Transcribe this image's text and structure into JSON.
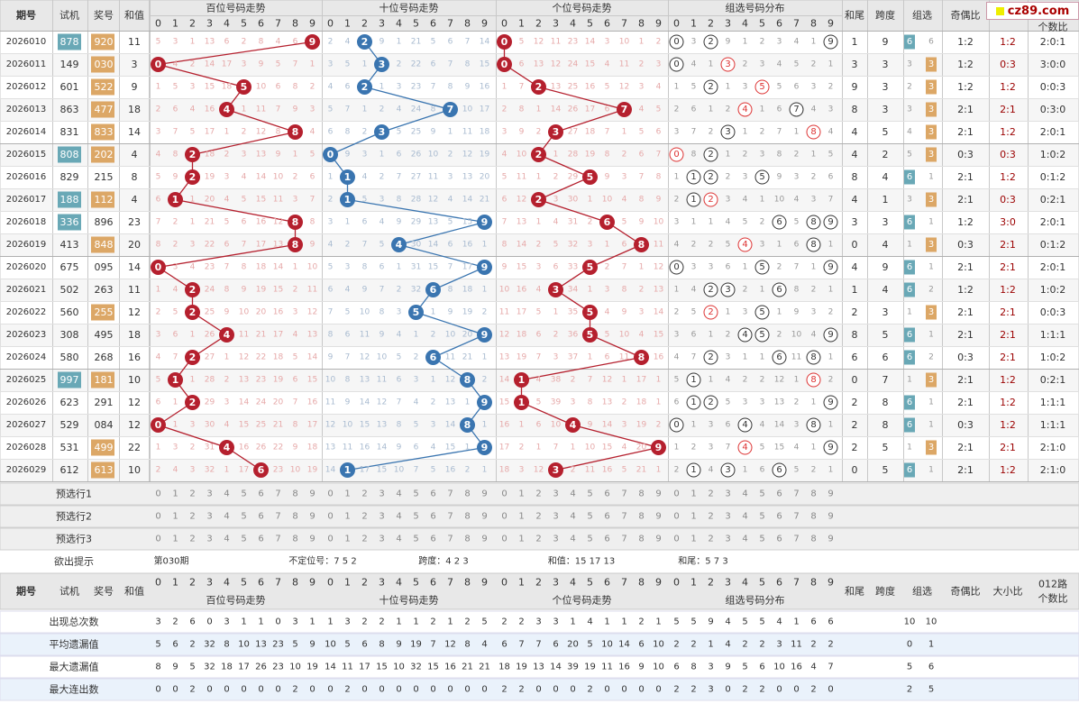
{
  "header": {
    "period": "期号",
    "trial": "试机",
    "award": "奖号",
    "sum": "和值",
    "sections": [
      "百位号码走势",
      "十位号码走势",
      "个位号码走势",
      "组选号码分布"
    ],
    "tail": "和尾",
    "span": "跨度",
    "group": "组选",
    "odd_even": "奇偶比",
    "big_small": "大小比",
    "route012": "012路",
    "route012b": "个数比",
    "digits": [
      "0",
      "1",
      "2",
      "3",
      "4",
      "5",
      "6",
      "7",
      "8",
      "9"
    ]
  },
  "site": {
    "logo_text": "cz89.com"
  },
  "rows": [
    {
      "p": "2026010",
      "t": "878",
      "tc": "6",
      "a": "920",
      "ac": "6",
      "s": "11",
      "hb": [
        5,
        3,
        1,
        13,
        6,
        2,
        8,
        4,
        6,
        9
      ],
      "sb": [
        2,
        4,
        2,
        9,
        1,
        21,
        5,
        6,
        7,
        14
      ],
      "gb": [
        0,
        5,
        12,
        11,
        23,
        14,
        3,
        10,
        1,
        2
      ],
      "zb": [
        0,
        3,
        2,
        9,
        1,
        2,
        3,
        4,
        1,
        9
      ],
      "tail": "1",
      "span": "9",
      "gz": "6",
      "gv": "6",
      "oe": "1:2",
      "bs": "1:2",
      "r": "2:0:1"
    },
    {
      "p": "2026011",
      "t": "149",
      "tc": "n",
      "a": "030",
      "ac": "3",
      "s": "3",
      "hb": [
        0,
        4,
        2,
        14,
        17,
        3,
        9,
        5,
        7,
        1
      ],
      "sb": [
        3,
        5,
        1,
        3,
        2,
        22,
        6,
        7,
        8,
        15
      ],
      "gb": [
        0,
        6,
        13,
        12,
        24,
        15,
        4,
        11,
        2,
        3
      ],
      "zb": [
        0,
        4,
        1,
        3,
        2,
        3,
        4,
        5,
        2,
        1
      ],
      "tail": "3",
      "span": "3",
      "gz": "3",
      "gv": "3",
      "oe": "1:2",
      "bs": "0:3",
      "r": "3:0:0"
    },
    {
      "p": "2026012",
      "t": "601",
      "tc": "n",
      "a": "522",
      "ac": "6",
      "s": "9",
      "hb": [
        1,
        5,
        3,
        15,
        18,
        5,
        10,
        6,
        8,
        2
      ],
      "sb": [
        4,
        6,
        2,
        1,
        3,
        23,
        7,
        8,
        9,
        16
      ],
      "gb": [
        1,
        7,
        2,
        13,
        25,
        16,
        5,
        12,
        3,
        4
      ],
      "zb": [
        1,
        5,
        2,
        1,
        3,
        5,
        5,
        6,
        3,
        2
      ],
      "tail": "9",
      "span": "3",
      "gz": "3",
      "gv": "2",
      "oe": "1:2",
      "bs": "1:2",
      "r": "0:0:3"
    },
    {
      "p": "2026013",
      "t": "863",
      "tc": "n",
      "a": "477",
      "ac": "6",
      "s": "18",
      "hb": [
        2,
        6,
        4,
        16,
        4,
        1,
        11,
        7,
        9,
        3
      ],
      "sb": [
        5,
        7,
        1,
        2,
        4,
        24,
        8,
        7,
        10,
        17
      ],
      "gb": [
        2,
        8,
        1,
        14,
        26,
        17,
        6,
        7,
        4,
        5
      ],
      "zb": [
        2,
        6,
        1,
        2,
        4,
        1,
        6,
        7,
        4,
        3
      ],
      "tail": "8",
      "span": "3",
      "gz": "3",
      "gv": "3",
      "oe": "2:1",
      "bs": "2:1",
      "r": "0:3:0"
    },
    {
      "p": "2026014",
      "t": "831",
      "tc": "n",
      "a": "833",
      "ac": "6",
      "s": "14",
      "hb": [
        3,
        7,
        5,
        17,
        1,
        2,
        12,
        8,
        8,
        4
      ],
      "sb": [
        6,
        8,
        2,
        3,
        5,
        25,
        9,
        1,
        11,
        18
      ],
      "gb": [
        3,
        9,
        2,
        3,
        27,
        18,
        7,
        1,
        5,
        6
      ],
      "zb": [
        3,
        7,
        2,
        3,
        1,
        2,
        7,
        1,
        8,
        4
      ],
      "tail": "4",
      "span": "5",
      "gz": "3",
      "gv": "4",
      "oe": "2:1",
      "bs": "1:2",
      "r": "2:0:1"
    },
    {
      "p": "2026015",
      "t": "808",
      "tc": "3",
      "a": "202",
      "ac": "6",
      "s": "4",
      "hb": [
        4,
        8,
        2,
        18,
        2,
        3,
        13,
        9,
        1,
        5
      ],
      "sb": [
        0,
        9,
        3,
        1,
        6,
        26,
        10,
        2,
        12,
        19
      ],
      "gb": [
        4,
        10,
        2,
        1,
        28,
        19,
        8,
        2,
        6,
        7
      ],
      "zb": [
        0,
        8,
        2,
        1,
        2,
        3,
        8,
        2,
        1,
        5
      ],
      "tail": "4",
      "span": "2",
      "gz": "3",
      "gv": "5",
      "oe": "0:3",
      "bs": "0:3",
      "r": "1:0:2"
    },
    {
      "p": "2026016",
      "t": "829",
      "tc": "n",
      "a": "215",
      "ac": "n",
      "s": "8",
      "hb": [
        5,
        9,
        2,
        19,
        3,
        4,
        14,
        10,
        2,
        6
      ],
      "sb": [
        1,
        1,
        4,
        2,
        7,
        27,
        11,
        3,
        13,
        20
      ],
      "gb": [
        5,
        11,
        1,
        2,
        29,
        5,
        9,
        3,
        7,
        8
      ],
      "zb": [
        1,
        1,
        2,
        2,
        3,
        5,
        9,
        3,
        2,
        6
      ],
      "tail": "8",
      "span": "4",
      "gz": "6",
      "gv": "1",
      "oe": "2:1",
      "bs": "1:2",
      "r": "0:1:2"
    },
    {
      "p": "2026017",
      "t": "188",
      "tc": "3",
      "a": "112",
      "ac": "6",
      "s": "4",
      "hb": [
        6,
        1,
        1,
        20,
        4,
        5,
        15,
        11,
        3,
        7
      ],
      "sb": [
        2,
        1,
        5,
        3,
        8,
        28,
        12,
        4,
        14,
        21
      ],
      "gb": [
        6,
        12,
        2,
        3,
        30,
        1,
        10,
        4,
        8,
        9
      ],
      "zb": [
        2,
        1,
        2,
        3,
        4,
        1,
        10,
        4,
        3,
        7
      ],
      "tail": "4",
      "span": "1",
      "gz": "3",
      "gv": "3",
      "oe": "2:1",
      "bs": "0:3",
      "r": "0:2:1"
    },
    {
      "p": "2026018",
      "t": "336",
      "tc": "3",
      "a": "896",
      "ac": "n",
      "s": "23",
      "hb": [
        7,
        2,
        1,
        21,
        5,
        6,
        16,
        12,
        8,
        8
      ],
      "sb": [
        3,
        1,
        6,
        4,
        9,
        29,
        13,
        5,
        15,
        9
      ],
      "gb": [
        7,
        13,
        1,
        4,
        31,
        2,
        6,
        5,
        9,
        10
      ],
      "zb": [
        3,
        1,
        1,
        4,
        5,
        2,
        6,
        5,
        8,
        9
      ],
      "tail": "3",
      "span": "3",
      "gz": "6",
      "gv": "1",
      "oe": "1:2",
      "bs": "3:0",
      "r": "2:0:1"
    },
    {
      "p": "2026019",
      "t": "413",
      "tc": "n",
      "a": "848",
      "ac": "6",
      "s": "20",
      "hb": [
        8,
        2,
        3,
        22,
        6,
        7,
        17,
        13,
        8,
        9
      ],
      "sb": [
        4,
        2,
        7,
        5,
        4,
        30,
        14,
        6,
        16,
        1
      ],
      "gb": [
        8,
        14,
        2,
        5,
        32,
        3,
        1,
        6,
        8,
        11
      ],
      "zb": [
        4,
        2,
        2,
        5,
        4,
        3,
        1,
        6,
        8,
        1
      ],
      "tail": "0",
      "span": "4",
      "gz": "3",
      "gv": "1",
      "oe": "0:3",
      "bs": "2:1",
      "r": "0:1:2"
    },
    {
      "p": "2026020",
      "t": "675",
      "tc": "n",
      "a": "095",
      "ac": "n",
      "s": "14",
      "hb": [
        0,
        3,
        4,
        23,
        7,
        8,
        18,
        14,
        1,
        10
      ],
      "sb": [
        5,
        3,
        8,
        6,
        1,
        31,
        15,
        7,
        17,
        9
      ],
      "gb": [
        9,
        15,
        3,
        6,
        33,
        5,
        2,
        7,
        1,
        12
      ],
      "zb": [
        0,
        3,
        3,
        6,
        1,
        5,
        2,
        7,
        1,
        9
      ],
      "tail": "4",
      "span": "9",
      "gz": "6",
      "gv": "1",
      "oe": "2:1",
      "bs": "2:1",
      "r": "2:0:1"
    },
    {
      "p": "2026021",
      "t": "502",
      "tc": "n",
      "a": "263",
      "ac": "n",
      "s": "11",
      "hb": [
        1,
        4,
        2,
        24,
        8,
        9,
        19,
        15,
        2,
        11
      ],
      "sb": [
        6,
        4,
        9,
        7,
        2,
        32,
        6,
        8,
        18,
        1
      ],
      "gb": [
        10,
        16,
        4,
        3,
        34,
        1,
        3,
        8,
        2,
        13
      ],
      "zb": [
        1,
        4,
        2,
        3,
        2,
        1,
        6,
        8,
        2,
        1
      ],
      "tail": "1",
      "span": "4",
      "gz": "6",
      "gv": "2",
      "oe": "1:2",
      "bs": "1:2",
      "r": "1:0:2"
    },
    {
      "p": "2026022",
      "t": "560",
      "tc": "n",
      "a": "255",
      "ac": "6",
      "s": "12",
      "hb": [
        2,
        5,
        2,
        25,
        9,
        10,
        20,
        16,
        3,
        12
      ],
      "sb": [
        7,
        5,
        10,
        8,
        3,
        5,
        1,
        9,
        19,
        2
      ],
      "gb": [
        11,
        17,
        5,
        1,
        35,
        5,
        4,
        9,
        3,
        14
      ],
      "zb": [
        2,
        5,
        2,
        1,
        3,
        5,
        1,
        9,
        3,
        2
      ],
      "tail": "2",
      "span": "3",
      "gz": "3",
      "gv": "1",
      "oe": "2:1",
      "bs": "2:1",
      "r": "0:0:3"
    },
    {
      "p": "2026023",
      "t": "308",
      "tc": "n",
      "a": "495",
      "ac": "n",
      "s": "18",
      "hb": [
        3,
        6,
        1,
        26,
        4,
        11,
        21,
        17,
        4,
        13
      ],
      "sb": [
        8,
        6,
        11,
        9,
        4,
        1,
        2,
        10,
        20,
        9
      ],
      "gb": [
        12,
        18,
        6,
        2,
        36,
        5,
        5,
        10,
        4,
        15
      ],
      "zb": [
        3,
        6,
        1,
        2,
        4,
        5,
        2,
        10,
        4,
        9
      ],
      "tail": "8",
      "span": "5",
      "gz": "6",
      "gv": "1",
      "oe": "2:1",
      "bs": "2:1",
      "r": "1:1:1"
    },
    {
      "p": "2026024",
      "t": "580",
      "tc": "n",
      "a": "268",
      "ac": "n",
      "s": "16",
      "hb": [
        4,
        7,
        2,
        27,
        1,
        12,
        22,
        18,
        5,
        14
      ],
      "sb": [
        9,
        7,
        12,
        10,
        5,
        2,
        6,
        11,
        21,
        1
      ],
      "gb": [
        13,
        19,
        7,
        3,
        37,
        1,
        6,
        11,
        8,
        16
      ],
      "zb": [
        4,
        7,
        2,
        3,
        1,
        1,
        6,
        11,
        8,
        1
      ],
      "tail": "6",
      "span": "6",
      "gz": "6",
      "gv": "2",
      "oe": "0:3",
      "bs": "2:1",
      "r": "1:0:2"
    },
    {
      "p": "2026025",
      "t": "997",
      "tc": "3",
      "a": "181",
      "ac": "6",
      "s": "10",
      "hb": [
        5,
        1,
        1,
        28,
        2,
        13,
        23,
        19,
        6,
        15
      ],
      "sb": [
        10,
        8,
        13,
        11,
        6,
        3,
        1,
        12,
        8,
        2
      ],
      "gb": [
        14,
        1,
        4,
        38,
        2,
        7,
        12,
        1,
        17,
        1
      ],
      "zb": [
        5,
        1,
        1,
        4,
        2,
        2,
        12,
        1,
        8,
        2
      ],
      "tail": "0",
      "span": "7",
      "gz": "3",
      "gv": "1",
      "oe": "2:1",
      "bs": "1:2",
      "r": "0:2:1"
    },
    {
      "p": "2026026",
      "t": "623",
      "tc": "n",
      "a": "291",
      "ac": "n",
      "s": "12",
      "hb": [
        6,
        1,
        2,
        29,
        3,
        14,
        24,
        20,
        7,
        16
      ],
      "sb": [
        11,
        9,
        14,
        12,
        7,
        4,
        2,
        13,
        1,
        9
      ],
      "gb": [
        15,
        1,
        5,
        39,
        3,
        8,
        13,
        2,
        18,
        1
      ],
      "zb": [
        6,
        1,
        2,
        5,
        3,
        3,
        13,
        2,
        1,
        9
      ],
      "tail": "2",
      "span": "8",
      "gz": "6",
      "gv": "1",
      "oe": "2:1",
      "bs": "1:2",
      "r": "1:1:1"
    },
    {
      "p": "2026027",
      "t": "529",
      "tc": "n",
      "a": "084",
      "ac": "n",
      "s": "12",
      "hb": [
        0,
        1,
        3,
        30,
        4,
        15,
        25,
        21,
        8,
        17
      ],
      "sb": [
        12,
        10,
        15,
        13,
        8,
        5,
        3,
        14,
        8,
        1
      ],
      "gb": [
        16,
        1,
        6,
        10,
        4,
        9,
        14,
        3,
        19,
        2
      ],
      "zb": [
        0,
        1,
        3,
        6,
        4,
        4,
        14,
        3,
        8,
        1
      ],
      "tail": "2",
      "span": "8",
      "gz": "6",
      "gv": "1",
      "oe": "0:3",
      "bs": "1:2",
      "r": "1:1:1"
    },
    {
      "p": "2026028",
      "t": "531",
      "tc": "n",
      "a": "499",
      "ac": "6",
      "s": "22",
      "hb": [
        1,
        3,
        2,
        31,
        4,
        16,
        26,
        22,
        9,
        18
      ],
      "sb": [
        13,
        11,
        16,
        14,
        9,
        6,
        4,
        15,
        1,
        9
      ],
      "gb": [
        17,
        2,
        1,
        7,
        1,
        10,
        15,
        4,
        20,
        9
      ],
      "zb": [
        1,
        2,
        3,
        7,
        4,
        5,
        15,
        4,
        1,
        9
      ],
      "tail": "2",
      "span": "5",
      "gz": "3",
      "gv": "1",
      "oe": "2:1",
      "bs": "2:1",
      "r": "2:1:0"
    },
    {
      "p": "2026029",
      "t": "612",
      "tc": "n",
      "a": "613",
      "ac": "6",
      "s": "10",
      "hb": [
        2,
        4,
        3,
        32,
        1,
        17,
        6,
        23,
        10,
        19
      ],
      "sb": [
        14,
        1,
        17,
        15,
        10,
        7,
        5,
        16,
        2,
        1
      ],
      "gb": [
        18,
        3,
        12,
        3,
        2,
        11,
        16,
        5,
        21,
        1
      ],
      "zb": [
        2,
        1,
        4,
        3,
        1,
        6,
        16,
        5,
        2,
        1
      ],
      "tail": "0",
      "span": "5",
      "gz": "6",
      "gv": "1",
      "oe": "2:1",
      "bs": "1:2",
      "r": "2:1:0"
    }
  ],
  "preselect": [
    "预选行1",
    "预选行2",
    "预选行3"
  ],
  "hint": {
    "label": "欲出提示",
    "period": "第030期",
    "uncertain": "不定位号：7 5 2",
    "span": "跨度：4 2 3",
    "sum": "和值：15 17 13",
    "tail": "和尾：5 7 3"
  },
  "stats": [
    {
      "label": "出现总次数",
      "h": [
        "3",
        "2",
        "6",
        "0",
        "3",
        "1",
        "1",
        "0",
        "3",
        "1"
      ],
      "s": [
        "1",
        "3",
        "2",
        "2",
        "1",
        "1",
        "2",
        "1",
        "2",
        "5"
      ],
      "g": [
        "2",
        "2",
        "3",
        "3",
        "1",
        "4",
        "1",
        "1",
        "2",
        "1"
      ],
      "z": [
        "5",
        "5",
        "9",
        "4",
        "5",
        "5",
        "4",
        "1",
        "6",
        "6"
      ],
      "g1": "10",
      "g2": "10"
    },
    {
      "label": "平均遗漏值",
      "h": [
        "5",
        "6",
        "2",
        "32",
        "8",
        "10",
        "13",
        "23",
        "5",
        "9"
      ],
      "s": [
        "10",
        "5",
        "6",
        "8",
        "9",
        "19",
        "7",
        "12",
        "8",
        "4"
      ],
      "g": [
        "6",
        "7",
        "7",
        "6",
        "20",
        "5",
        "10",
        "14",
        "6",
        "10"
      ],
      "z": [
        "2",
        "2",
        "1",
        "4",
        "2",
        "2",
        "3",
        "11",
        "2",
        "2"
      ],
      "g1": "0",
      "g2": "1"
    },
    {
      "label": "最大遗漏值",
      "h": [
        "8",
        "9",
        "5",
        "32",
        "18",
        "17",
        "26",
        "23",
        "10",
        "19"
      ],
      "s": [
        "14",
        "11",
        "17",
        "15",
        "10",
        "32",
        "15",
        "16",
        "21",
        "21"
      ],
      "g": [
        "18",
        "19",
        "13",
        "14",
        "39",
        "19",
        "11",
        "16",
        "9",
        "10"
      ],
      "z": [
        "6",
        "8",
        "3",
        "9",
        "5",
        "6",
        "10",
        "16",
        "4",
        "7"
      ],
      "g1": "5",
      "g2": "6"
    },
    {
      "label": "最大连出数",
      "h": [
        "0",
        "0",
        "2",
        "0",
        "0",
        "0",
        "0",
        "0",
        "2",
        "0"
      ],
      "s": [
        "0",
        "2",
        "0",
        "0",
        "0",
        "0",
        "0",
        "0",
        "0",
        "0"
      ],
      "g": [
        "2",
        "2",
        "0",
        "0",
        "0",
        "2",
        "0",
        "0",
        "0",
        "0"
      ],
      "z": [
        "2",
        "2",
        "3",
        "0",
        "2",
        "2",
        "0",
        "0",
        "2",
        "0"
      ],
      "g1": "2",
      "g2": "5"
    }
  ],
  "colors": {
    "hundreds": "#b5202e",
    "tens": "#3a75b0",
    "ones": "#b5202e",
    "trial_hl": "#69a8b6",
    "award_hl": "#dca766",
    "group6": "#69a8b6",
    "group3": "#dca766",
    "header_bg": "#e8e8e8",
    "dark_red": "#9b0000"
  }
}
